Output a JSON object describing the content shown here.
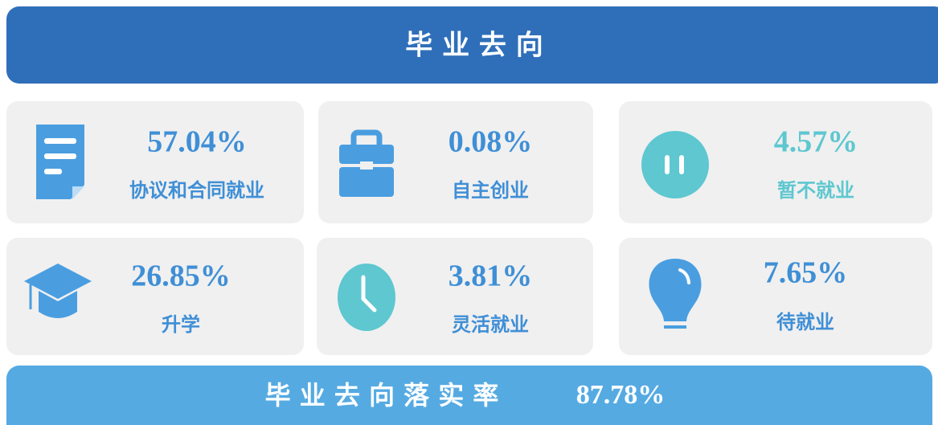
{
  "header": {
    "title": "毕 业 去 向"
  },
  "cards": [
    {
      "value": "57.04%",
      "label": "协议和合同就业"
    },
    {
      "value": "0.08%",
      "label": "自主创业"
    },
    {
      "value": "4.57%",
      "label": "暂不就业"
    },
    {
      "value": "26.85%",
      "label": "升学"
    },
    {
      "value": "3.81%",
      "label": "灵活就业"
    },
    {
      "value": "7.65%",
      "label": "待就业"
    }
  ],
  "footer": {
    "label": "毕 业 去 向 落 实 率",
    "value": "87.78%"
  }
}
